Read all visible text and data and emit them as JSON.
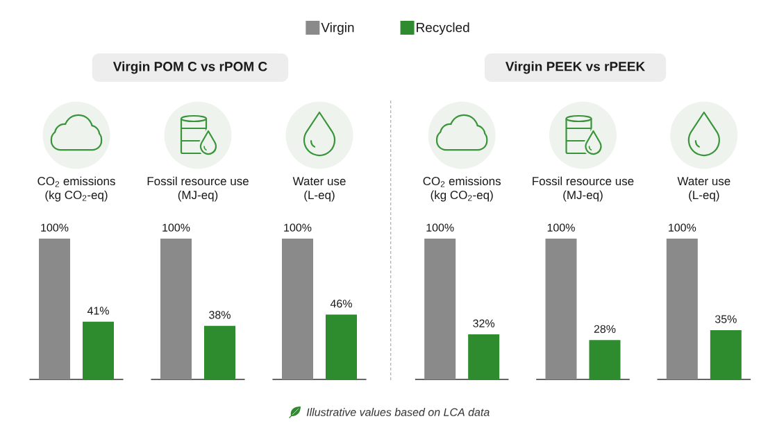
{
  "chart_data": [
    {
      "type": "bar",
      "title": "Virgin POM C vs rPOM C",
      "categories": [
        "CO$_{2}$ emissions\n(kg CO$_{2}$-eq)",
        "Fossil resource use\n(MJ-eq)",
        "Water use\n(L-eq)"
      ],
      "series": [
        {
          "name": "Virgin",
          "color": "#8a8a8a",
          "values": [
            100,
            100,
            100
          ],
          "value_labels": [
            "100%",
            "100%",
            "100%"
          ]
        },
        {
          "name": "Recycled",
          "color": "#2e8b2e",
          "values": [
            41,
            38,
            46
          ],
          "value_labels": [
            "41%",
            "38%",
            "46%"
          ]
        }
      ],
      "legend": "top",
      "tick_labels": "x",
      "annotations": [
        "Illustrative values based on LCA data"
      ]
    },
    {
      "type": "bar",
      "title": "Virgin PEEK vs  rPEEK",
      "categories": [
        "CO$_{2}$ emissions\n(kg CO$_{2}$-eq)",
        "Fossil resource use\n(MJ-eq)",
        "Water use\n(L-eq)"
      ],
      "series": [
        {
          "color": "#8a8a8a",
          "values": [
            100,
            100,
            100
          ],
          "value_labels": [
            "100%",
            "100%",
            "100%"
          ]
        },
        {
          "color": "#2e8b2e",
          "values": [
            32,
            28,
            35
          ],
          "value_labels": [
            "32%",
            "28%",
            "35%"
          ]
        }
      ],
      "tick_labels": "x"
    }
  ]
}
